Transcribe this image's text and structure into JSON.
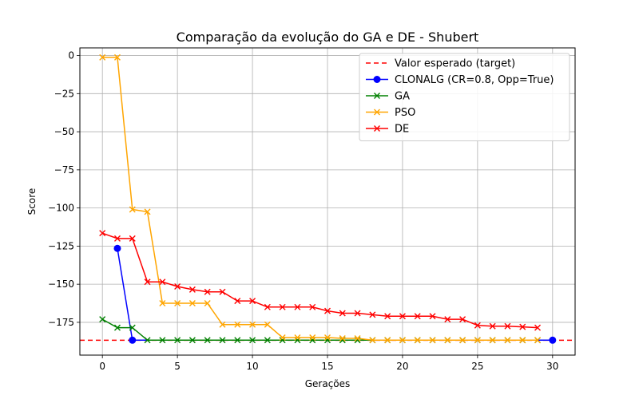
{
  "chart_data": {
    "type": "line",
    "title": "Comparação da evolução do GA e DE - Shubert",
    "xlabel": "Gerações",
    "ylabel": "Score",
    "xlim": [
      -1.5,
      31.5
    ],
    "ylim": [
      -196.5,
      5
    ],
    "xticks": [
      0,
      5,
      10,
      15,
      20,
      25,
      30
    ],
    "yticks": [
      0,
      -25,
      -50,
      -75,
      -100,
      -125,
      -150,
      -175
    ],
    "xtick_labels": [
      "0",
      "5",
      "10",
      "15",
      "20",
      "25",
      "30"
    ],
    "ytick_labels": [
      "0",
      "−25",
      "−50",
      "−75",
      "−100",
      "−125",
      "−150",
      "−175"
    ],
    "grid": true,
    "legend_position": "top-right",
    "target": {
      "name": "Valor esperado (target)",
      "value": -186.73,
      "color": "#ff0000",
      "style": "dashed"
    },
    "series": [
      {
        "name": "CLONALG (CR=0.8, Opp=True)",
        "color": "#0000ff",
        "marker": "circle",
        "x": [
          1,
          2,
          30
        ],
        "y": [
          -126.5,
          -186.7,
          -186.7
        ]
      },
      {
        "name": "GA",
        "color": "#008000",
        "marker": "x",
        "x": [
          0,
          1,
          2,
          3,
          4,
          5,
          6,
          7,
          8,
          9,
          10,
          11,
          12,
          13,
          14,
          15,
          16,
          17,
          18,
          19,
          20,
          21,
          22,
          23,
          24,
          25,
          26,
          27,
          28,
          29
        ],
        "y": [
          -173,
          -178.5,
          -178.5,
          -186.7,
          -186.7,
          -186.7,
          -186.7,
          -186.7,
          -186.7,
          -186.7,
          -186.7,
          -186.7,
          -186.7,
          -186.7,
          -186.7,
          -186.7,
          -186.7,
          -186.7,
          -186.7,
          -186.7,
          -186.7,
          -186.7,
          -186.7,
          -186.7,
          -186.7,
          -186.7,
          -186.7,
          -186.7,
          -186.7,
          -186.7
        ]
      },
      {
        "name": "PSO",
        "color": "#ffa500",
        "marker": "x",
        "x": [
          0,
          1,
          2,
          3,
          4,
          5,
          6,
          7,
          8,
          9,
          10,
          11,
          12,
          13,
          14,
          15,
          16,
          17,
          18,
          19,
          20,
          21,
          22,
          23,
          24,
          25,
          26,
          27,
          28,
          29
        ],
        "y": [
          -1.2,
          -1.2,
          -101,
          -102.5,
          -162.5,
          -162.5,
          -162.5,
          -162.5,
          -176.5,
          -176.5,
          -176.5,
          -176.5,
          -185,
          -185,
          -185,
          -185,
          -185.5,
          -185.5,
          -186.7,
          -186.7,
          -186.7,
          -186.7,
          -186.7,
          -186.7,
          -186.7,
          -186.7,
          -186.7,
          -186.7,
          -186.7,
          -186.7
        ]
      },
      {
        "name": "DE",
        "color": "#ff0000",
        "marker": "x",
        "x": [
          0,
          1,
          2,
          3,
          4,
          5,
          6,
          7,
          8,
          9,
          10,
          11,
          12,
          13,
          14,
          15,
          16,
          17,
          18,
          19,
          20,
          21,
          22,
          23,
          24,
          25,
          26,
          27,
          28,
          29
        ],
        "y": [
          -116.5,
          -120,
          -120,
          -148.5,
          -148.5,
          -151.5,
          -153.5,
          -155,
          -155,
          -161,
          -161,
          -165,
          -165,
          -165,
          -165,
          -167.5,
          -169,
          -169,
          -170,
          -171,
          -171,
          -171,
          -171,
          -173,
          -173,
          -177,
          -177.5,
          -177.5,
          -178,
          -178.5
        ]
      }
    ]
  }
}
